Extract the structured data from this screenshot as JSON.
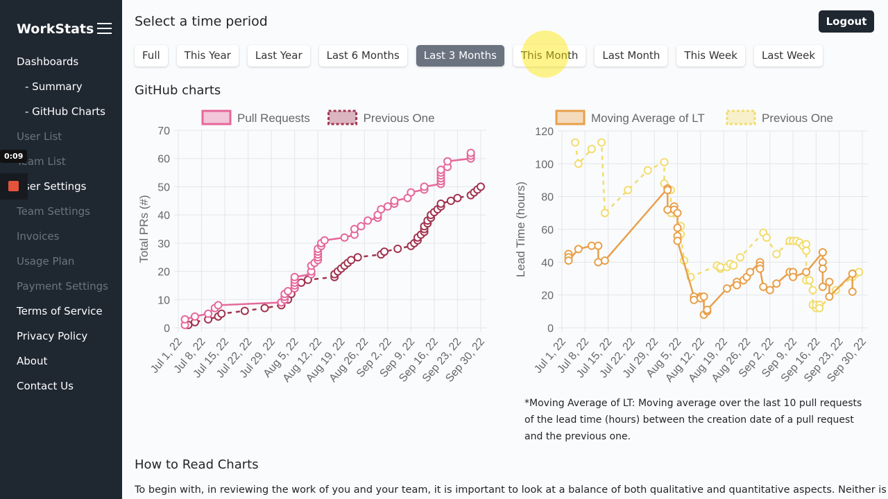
{
  "app": {
    "brand": "WorkStats",
    "menu_icon": "hamburger-icon"
  },
  "sidebar": {
    "items": [
      {
        "label": "Dashboards",
        "enabled": true
      },
      {
        "label": "- Summary",
        "enabled": true,
        "indent": true
      },
      {
        "label": "- GitHub Charts",
        "enabled": true,
        "indent": true
      },
      {
        "label": "User List",
        "enabled": false
      },
      {
        "label": "Team List",
        "enabled": false
      },
      {
        "label": "User Settings",
        "enabled": true
      },
      {
        "label": "Team Settings",
        "enabled": false
      },
      {
        "label": "Invoices",
        "enabled": false
      },
      {
        "label": "Usage Plan",
        "enabled": false
      },
      {
        "label": "Payment Settings",
        "enabled": false
      },
      {
        "label": "Terms of Service",
        "enabled": true
      },
      {
        "label": "Privacy Policy",
        "enabled": true
      },
      {
        "label": "About",
        "enabled": true
      },
      {
        "label": "Contact Us",
        "enabled": true
      }
    ]
  },
  "recorder": {
    "time": "0:09"
  },
  "header": {
    "title": "Select a time period",
    "logout": "Logout"
  },
  "periods": [
    {
      "label": "Full"
    },
    {
      "label": "This Year"
    },
    {
      "label": "Last Year"
    },
    {
      "label": "Last 6 Months"
    },
    {
      "label": "Last 3 Months",
      "active": true
    },
    {
      "label": "This Month"
    },
    {
      "label": "Last Month"
    },
    {
      "label": "This Week"
    },
    {
      "label": "Last Week"
    }
  ],
  "section_title": "GitHub charts",
  "note": "*Moving Average of LT: Moving average over the last 10 pull requests of the lead time (hours) between the creation date of a pull request and the previous one.",
  "how_title": "How to Read Charts",
  "how_text": "To begin with, in reviewing the work of you and your team, it is important to look at a balance of both qualitative and quantitative aspects. Neither is",
  "chart_data": [
    {
      "type": "line",
      "ylabel": "Total PRs (#)",
      "ylim": [
        0,
        70
      ],
      "yticks": [
        0,
        10,
        20,
        30,
        40,
        50,
        60,
        70
      ],
      "grid": true,
      "legend": "top",
      "xticks": [
        "Jul 1, 22",
        "Jul 8, 22",
        "Jul 15, 22",
        "Jul 22, 22",
        "Jul 29, 22",
        "Aug 5, 22",
        "Aug 12, 22",
        "Aug 19, 22",
        "Aug 26, 22",
        "Sep 2, 22",
        "Sep 9, 22",
        "Sep 16, 22",
        "Sep 23, 22",
        "Sep 30, 22"
      ],
      "xlim": [
        "2022-07-01",
        "2022-09-30"
      ],
      "series": [
        {
          "name": "Pull Requests",
          "color": "#e5679a",
          "dashed": false,
          "points": [
            [
              "2022-07-03",
              1
            ],
            [
              "2022-07-03",
              3
            ],
            [
              "2022-07-06",
              4
            ],
            [
              "2022-07-10",
              5
            ],
            [
              "2022-07-12",
              7
            ],
            [
              "2022-07-13",
              8
            ],
            [
              "2022-08-01",
              9
            ],
            [
              "2022-08-02",
              10
            ],
            [
              "2022-08-02",
              11
            ],
            [
              "2022-08-02",
              12
            ],
            [
              "2022-08-03",
              13
            ],
            [
              "2022-08-05",
              14
            ],
            [
              "2022-08-05",
              15
            ],
            [
              "2022-08-05",
              16
            ],
            [
              "2022-08-05",
              17
            ],
            [
              "2022-08-05",
              18
            ],
            [
              "2022-08-10",
              19
            ],
            [
              "2022-08-10",
              20
            ],
            [
              "2022-08-10",
              22
            ],
            [
              "2022-08-11",
              23
            ],
            [
              "2022-08-12",
              24
            ],
            [
              "2022-08-12",
              25
            ],
            [
              "2022-08-12",
              26
            ],
            [
              "2022-08-12",
              27
            ],
            [
              "2022-08-12",
              28
            ],
            [
              "2022-08-13",
              29
            ],
            [
              "2022-08-13",
              30
            ],
            [
              "2022-08-14",
              31
            ],
            [
              "2022-08-20",
              32
            ],
            [
              "2022-08-23",
              33
            ],
            [
              "2022-08-23",
              35
            ],
            [
              "2022-08-25",
              36
            ],
            [
              "2022-08-27",
              38
            ],
            [
              "2022-08-30",
              39
            ],
            [
              "2022-08-30",
              40
            ],
            [
              "2022-08-31",
              42
            ],
            [
              "2022-09-02",
              43
            ],
            [
              "2022-09-04",
              44
            ],
            [
              "2022-09-04",
              45
            ],
            [
              "2022-09-08",
              46
            ],
            [
              "2022-09-09",
              48
            ],
            [
              "2022-09-13",
              49
            ],
            [
              "2022-09-13",
              50
            ],
            [
              "2022-09-18",
              51
            ],
            [
              "2022-09-18",
              52
            ],
            [
              "2022-09-18",
              53
            ],
            [
              "2022-09-18",
              54
            ],
            [
              "2022-09-18",
              55
            ],
            [
              "2022-09-18",
              56
            ],
            [
              "2022-09-20",
              57
            ],
            [
              "2022-09-20",
              59
            ],
            [
              "2022-09-27",
              60
            ],
            [
              "2022-09-27",
              61
            ],
            [
              "2022-09-27",
              62
            ]
          ]
        },
        {
          "name": "Previous One",
          "color": "#a0334f",
          "dashed": true,
          "points": [
            [
              "2022-07-04",
              1
            ],
            [
              "2022-07-06",
              2
            ],
            [
              "2022-07-10",
              3
            ],
            [
              "2022-07-13",
              4
            ],
            [
              "2022-07-14",
              5
            ],
            [
              "2022-07-21",
              6
            ],
            [
              "2022-07-27",
              7
            ],
            [
              "2022-08-01",
              8
            ],
            [
              "2022-08-01",
              9
            ],
            [
              "2022-08-03",
              10
            ],
            [
              "2022-08-04",
              12
            ],
            [
              "2022-08-05",
              14
            ],
            [
              "2022-08-07",
              16
            ],
            [
              "2022-08-09",
              17
            ],
            [
              "2022-08-17",
              18
            ],
            [
              "2022-08-17",
              19
            ],
            [
              "2022-08-18",
              20
            ],
            [
              "2022-08-19",
              21
            ],
            [
              "2022-08-20",
              22
            ],
            [
              "2022-08-21",
              23
            ],
            [
              "2022-08-22",
              24
            ],
            [
              "2022-08-24",
              25
            ],
            [
              "2022-08-31",
              26
            ],
            [
              "2022-09-01",
              27
            ],
            [
              "2022-09-05",
              28
            ],
            [
              "2022-09-09",
              29
            ],
            [
              "2022-09-10",
              30
            ],
            [
              "2022-09-11",
              31
            ],
            [
              "2022-09-11",
              32
            ],
            [
              "2022-09-12",
              33
            ],
            [
              "2022-09-13",
              34
            ],
            [
              "2022-09-13",
              35
            ],
            [
              "2022-09-13",
              36
            ],
            [
              "2022-09-14",
              37
            ],
            [
              "2022-09-14",
              38
            ],
            [
              "2022-09-15",
              39
            ],
            [
              "2022-09-15",
              40
            ],
            [
              "2022-09-16",
              41
            ],
            [
              "2022-09-17",
              42
            ],
            [
              "2022-09-18",
              43
            ],
            [
              "2022-09-18",
              44
            ],
            [
              "2022-09-21",
              45
            ],
            [
              "2022-09-23",
              46
            ],
            [
              "2022-09-27",
              47
            ],
            [
              "2022-09-28",
              48
            ],
            [
              "2022-09-29",
              49
            ],
            [
              "2022-09-30",
              50
            ]
          ]
        }
      ]
    },
    {
      "type": "line",
      "ylabel": "Lead Time (hours)",
      "ylim": [
        0,
        120
      ],
      "yticks": [
        0,
        20,
        40,
        60,
        80,
        100,
        120
      ],
      "grid": true,
      "legend": "top",
      "xticks": [
        "Jul 1, 22",
        "Jul 8, 22",
        "Jul 15, 22",
        "Jul 22, 22",
        "Jul 29, 22",
        "Aug 5, 22",
        "Aug 12, 22",
        "Aug 19, 22",
        "Aug 26, 22",
        "Sep 2, 22",
        "Sep 9, 22",
        "Sep 16, 22",
        "Sep 23, 22",
        "Sep 30, 22"
      ],
      "xlim": [
        "2022-07-01",
        "2022-09-30"
      ],
      "series": [
        {
          "name": "Moving Average of LT",
          "color": "#e8a04a",
          "dashed": false,
          "points": [
            [
              "2022-07-03",
              45
            ],
            [
              "2022-07-03",
              43
            ],
            [
              "2022-07-03",
              41
            ],
            [
              "2022-07-06",
              48
            ],
            [
              "2022-07-10",
              50
            ],
            [
              "2022-07-12",
              50
            ],
            [
              "2022-07-12",
              40
            ],
            [
              "2022-07-14",
              41
            ],
            [
              "2022-08-02",
              85
            ],
            [
              "2022-08-02",
              84
            ],
            [
              "2022-08-02",
              72
            ],
            [
              "2022-08-04",
              74
            ],
            [
              "2022-08-04",
              72
            ],
            [
              "2022-08-05",
              70
            ],
            [
              "2022-08-05",
              61
            ],
            [
              "2022-08-05",
              56
            ],
            [
              "2022-08-05",
              53
            ],
            [
              "2022-08-10",
              19
            ],
            [
              "2022-08-10",
              17
            ],
            [
              "2022-08-12",
              19
            ],
            [
              "2022-08-12",
              18
            ],
            [
              "2022-08-13",
              19
            ],
            [
              "2022-08-13",
              8
            ],
            [
              "2022-08-14",
              10
            ],
            [
              "2022-08-14",
              11
            ],
            [
              "2022-08-20",
              24
            ],
            [
              "2022-08-23",
              28
            ],
            [
              "2022-08-23",
              26
            ],
            [
              "2022-08-25",
              29
            ],
            [
              "2022-08-26",
              31
            ],
            [
              "2022-08-27",
              34
            ],
            [
              "2022-08-30",
              40
            ],
            [
              "2022-08-30",
              38
            ],
            [
              "2022-08-30",
              36
            ],
            [
              "2022-08-31",
              25
            ],
            [
              "2022-09-02",
              23
            ],
            [
              "2022-09-04",
              27
            ],
            [
              "2022-09-08",
              34
            ],
            [
              "2022-09-09",
              34
            ],
            [
              "2022-09-09",
              31
            ],
            [
              "2022-09-13",
              34
            ],
            [
              "2022-09-18",
              46
            ],
            [
              "2022-09-18",
              46
            ],
            [
              "2022-09-18",
              40
            ],
            [
              "2022-09-18",
              36
            ],
            [
              "2022-09-18",
              25
            ],
            [
              "2022-09-20",
              28
            ],
            [
              "2022-09-20",
              19
            ],
            [
              "2022-09-27",
              33
            ],
            [
              "2022-09-27",
              22
            ]
          ]
        },
        {
          "name": "Previous One",
          "color": "#f2dc6e",
          "dashed": true,
          "points": [
            [
              "2022-07-05",
              113
            ],
            [
              "2022-07-06",
              100
            ],
            [
              "2022-07-10",
              109
            ],
            [
              "2022-07-13",
              113
            ],
            [
              "2022-07-14",
              70
            ],
            [
              "2022-07-21",
              84
            ],
            [
              "2022-07-27",
              96
            ],
            [
              "2022-08-01",
              101
            ],
            [
              "2022-08-01",
              88
            ],
            [
              "2022-08-03",
              84
            ],
            [
              "2022-08-03",
              70
            ],
            [
              "2022-08-06",
              62
            ],
            [
              "2022-08-06",
              57
            ],
            [
              "2022-08-07",
              41
            ],
            [
              "2022-08-09",
              31
            ],
            [
              "2022-08-17",
              38
            ],
            [
              "2022-08-18",
              36
            ],
            [
              "2022-08-18",
              37
            ],
            [
              "2022-08-20",
              37
            ],
            [
              "2022-08-21",
              39
            ],
            [
              "2022-08-22",
              38
            ],
            [
              "2022-08-24",
              43
            ],
            [
              "2022-08-31",
              58
            ],
            [
              "2022-09-01",
              55
            ],
            [
              "2022-09-04",
              45
            ],
            [
              "2022-09-08",
              53
            ],
            [
              "2022-09-09",
              53
            ],
            [
              "2022-09-10",
              53
            ],
            [
              "2022-09-11",
              52
            ],
            [
              "2022-09-12",
              50
            ],
            [
              "2022-09-13",
              51
            ],
            [
              "2022-09-13",
              47
            ],
            [
              "2022-09-13",
              29
            ],
            [
              "2022-09-14",
              29
            ],
            [
              "2022-09-15",
              23
            ],
            [
              "2022-09-15",
              14
            ],
            [
              "2022-09-16",
              12
            ],
            [
              "2022-09-16",
              14
            ],
            [
              "2022-09-17",
              14
            ],
            [
              "2022-09-17",
              12
            ],
            [
              "2022-09-22",
              23
            ],
            [
              "2022-09-27",
              31
            ],
            [
              "2022-09-28",
              33
            ],
            [
              "2022-09-29",
              34
            ]
          ]
        }
      ]
    }
  ]
}
